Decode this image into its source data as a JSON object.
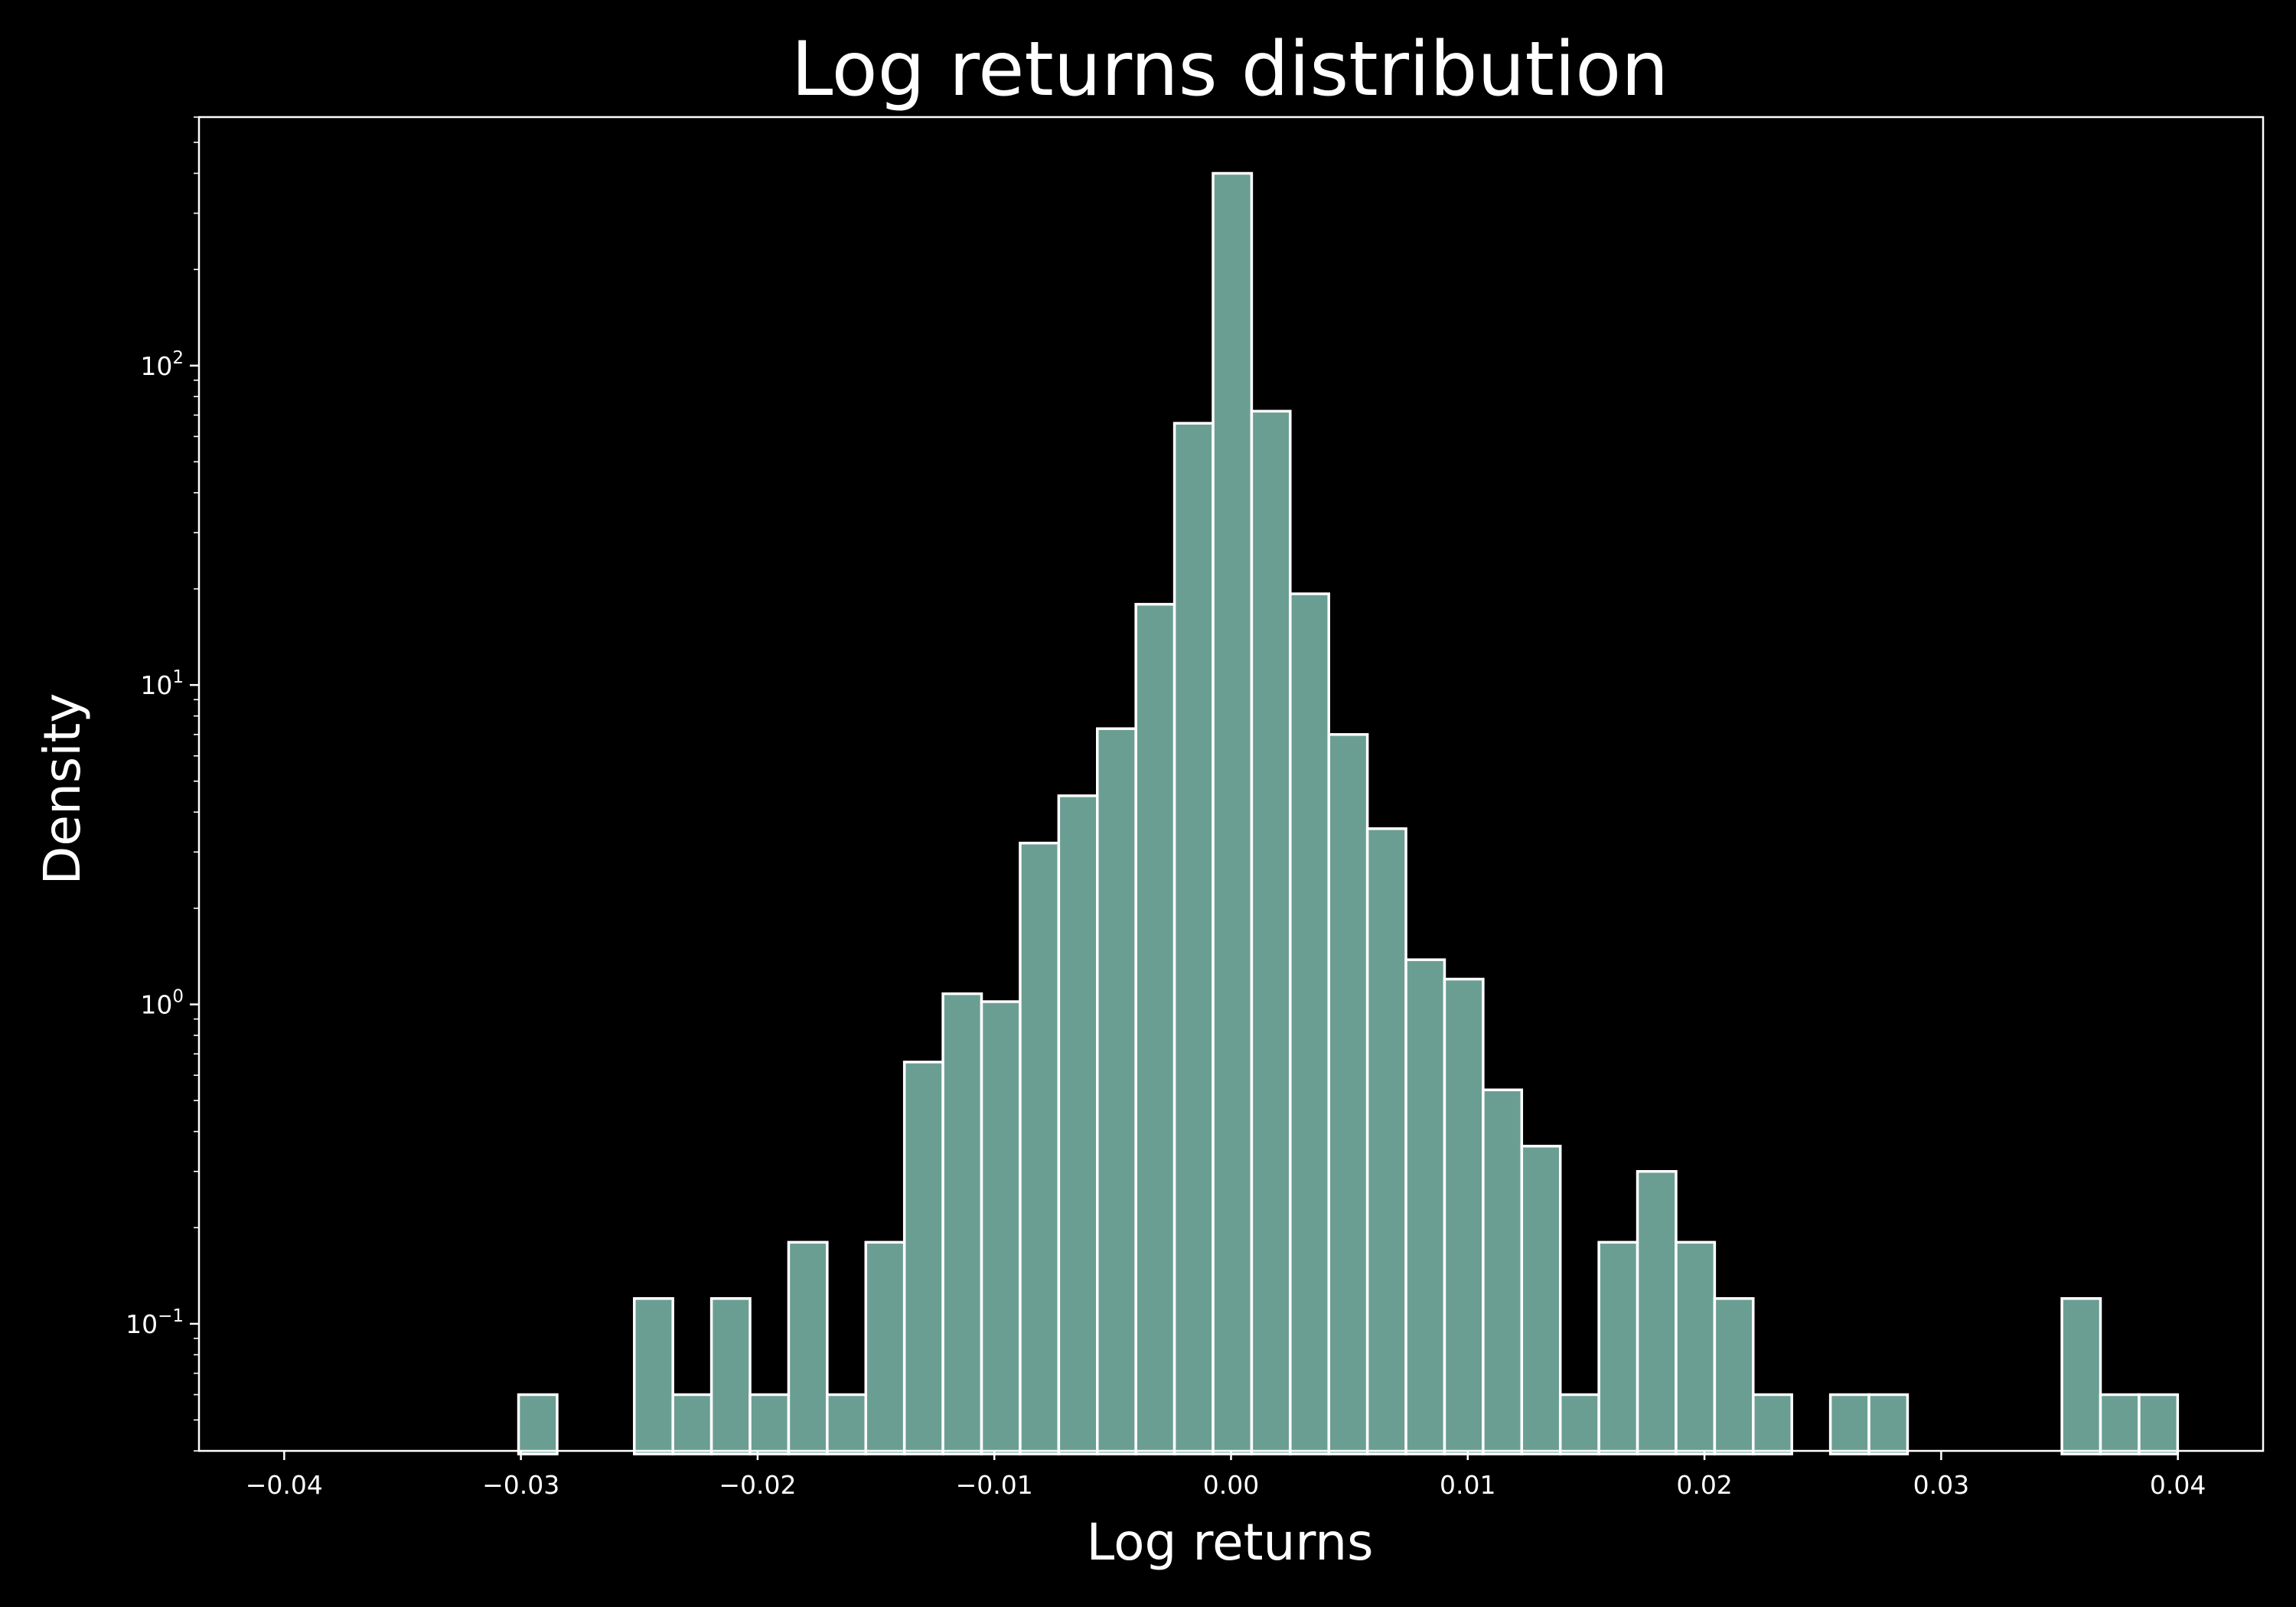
{
  "chart_data": {
    "type": "bar",
    "title": "Log returns distribution",
    "xlabel": "Log returns",
    "ylabel": "Density",
    "xlim": [
      -0.0436,
      0.0436
    ],
    "ylim": [
      0.04,
      600
    ],
    "yscale": "log",
    "grid": false,
    "x_ticks": [
      "−0.04",
      "−0.03",
      "−0.02",
      "−0.01",
      "0.00",
      "0.01",
      "0.02",
      "0.03",
      "0.04"
    ],
    "y_ticks": [
      {
        "base": "10",
        "exp": "−1"
      },
      {
        "base": "10",
        "exp": "0"
      },
      {
        "base": "10",
        "exp": "1"
      },
      {
        "base": "10",
        "exp": "2"
      }
    ],
    "bin_edges": [
      -0.0301,
      -0.02847,
      -0.02684,
      -0.02521,
      -0.02358,
      -0.02195,
      -0.02032,
      -0.01869,
      -0.01706,
      -0.01543,
      -0.0138,
      -0.01217,
      -0.01054,
      -0.00891,
      -0.00728,
      -0.00565,
      -0.00402,
      -0.00239,
      -0.00076,
      0.00087,
      0.0025,
      0.00413,
      0.00576,
      0.00739,
      0.00902,
      0.01065,
      0.01228,
      0.01391,
      0.01554,
      0.01717,
      0.0188,
      0.02043,
      0.02206,
      0.02369,
      0.02532,
      0.02695,
      0.02858,
      0.03021,
      0.03184,
      0.03347,
      0.0351,
      0.03673,
      0.03836,
      0.03999
    ],
    "values": [
      0.06,
      0,
      0,
      0.12,
      0.06,
      0.12,
      0.06,
      0.18,
      0.06,
      0.18,
      0.66,
      1.08,
      1.02,
      3.2,
      4.5,
      7.3,
      17.9,
      66,
      400,
      72,
      19.3,
      7.0,
      3.55,
      1.38,
      1.2,
      0.54,
      0.36,
      0.06,
      0.18,
      0.3,
      0.18,
      0.12,
      0.06,
      0,
      0.06,
      0.06,
      0,
      0,
      0,
      0,
      0.12,
      0.06,
      0.06
    ],
    "colors": {
      "background": "#000000",
      "bar": "#6b9e93",
      "edge": "#ffffff",
      "text": "#ffffff"
    }
  }
}
